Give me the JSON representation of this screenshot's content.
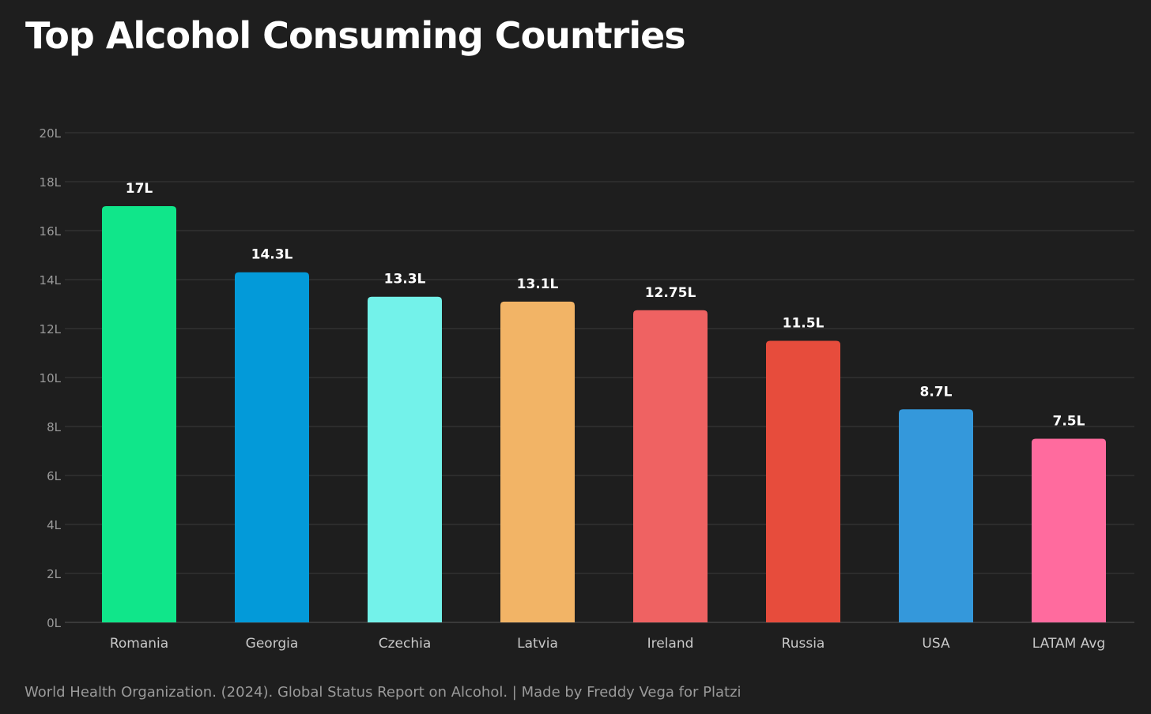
{
  "chart_data": {
    "type": "bar",
    "title": "Top Alcohol Consuming Countries",
    "xlabel": "",
    "ylabel": "",
    "ylim": [
      0,
      20
    ],
    "yticks": [
      0,
      2,
      4,
      6,
      8,
      10,
      12,
      14,
      16,
      18,
      20
    ],
    "ytick_suffix": "L",
    "grid": true,
    "categories": [
      "Romania",
      "Georgia",
      "Czechia",
      "Latvia",
      "Ireland",
      "Russia",
      "USA",
      "LATAM Avg"
    ],
    "values": [
      17,
      14.3,
      13.3,
      13.1,
      12.75,
      11.5,
      8.7,
      7.5
    ],
    "data_labels": [
      "17L",
      "14.3L",
      "13.3L",
      "13.1L",
      "12.75L",
      "11.5L",
      "8.7L",
      "7.5L"
    ],
    "colors": [
      "#10e68a",
      "#039ad9",
      "#73f2ea",
      "#f2b466",
      "#ef6262",
      "#e74c3c",
      "#3498db",
      "#ff6b9e"
    ],
    "source": "World Health Organization. (2024). Global Status Report on Alcohol. | Made by Freddy Vega for Platzi"
  }
}
